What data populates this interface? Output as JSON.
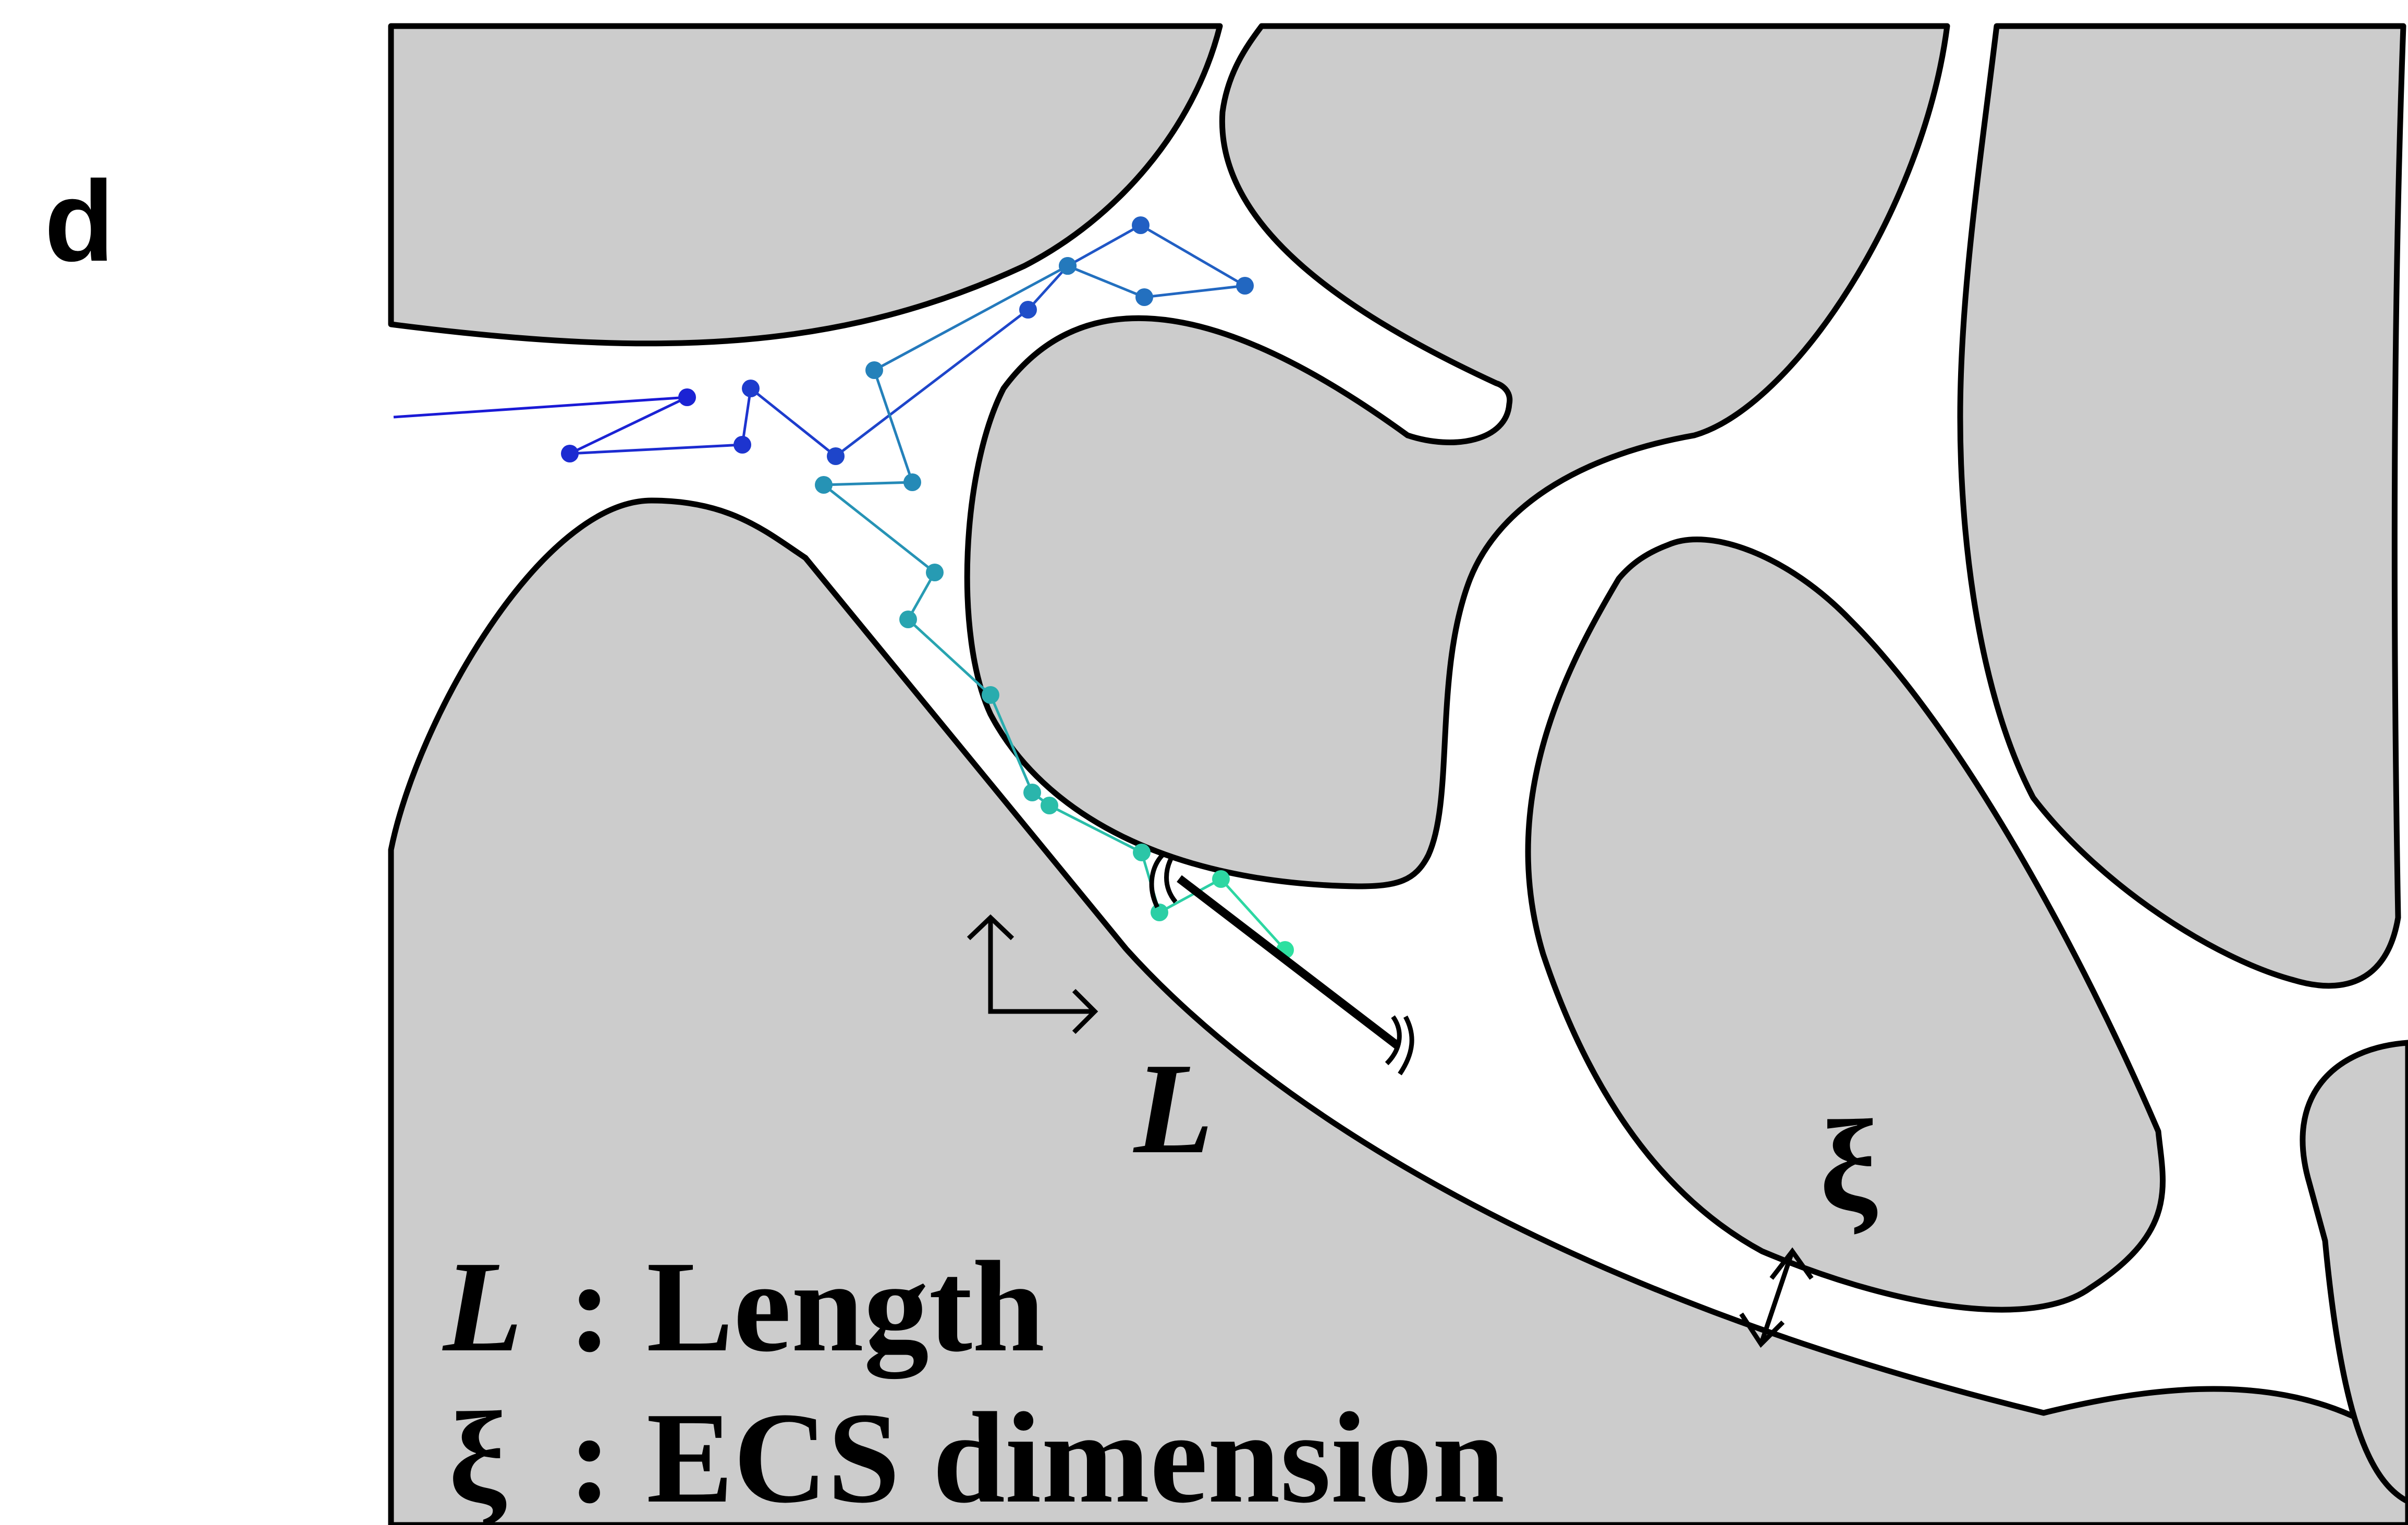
{
  "panel_label": "d",
  "diagram_labels": {
    "length_symbol": "L",
    "ecs_symbol": "ξ"
  },
  "legend": {
    "items": [
      {
        "symbol": "L",
        "separator": ":",
        "text": "Length"
      },
      {
        "symbol": "ξ",
        "separator": ":",
        "text": "ECS dimension"
      }
    ]
  },
  "colors": {
    "cells": "#cccccc",
    "outline": "#000000",
    "walk_start": "#1a1ad6",
    "walk_end": "#2ee0a0"
  }
}
